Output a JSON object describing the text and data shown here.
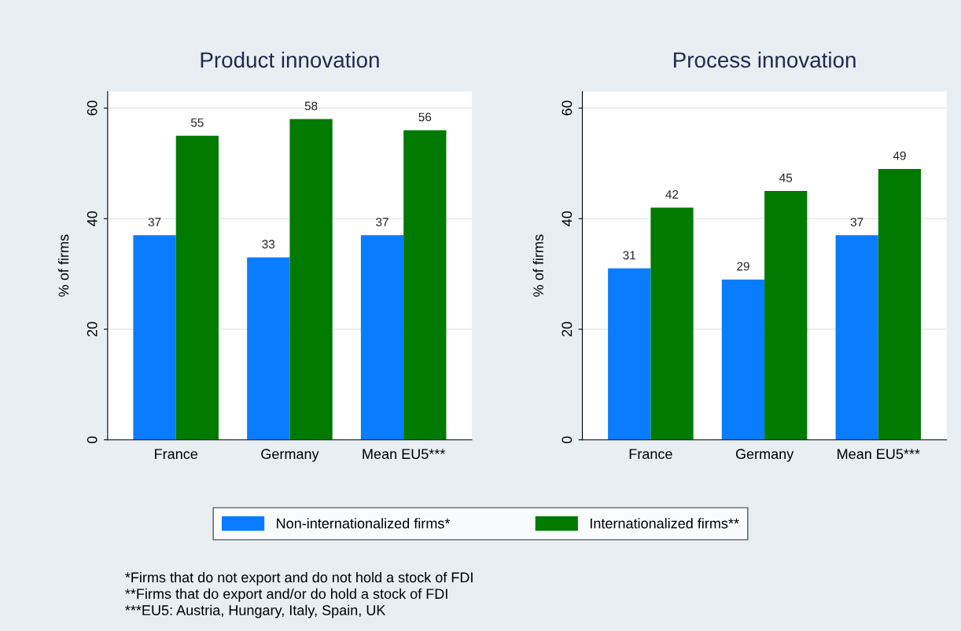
{
  "chart_data": [
    {
      "type": "bar",
      "title": "Product innovation",
      "ylabel": "% of firms",
      "categories": [
        "France",
        "Germany",
        "Mean EU5***"
      ],
      "series": [
        {
          "name": "Non-internationalized firms*",
          "color": "#0a7cff",
          "values": [
            37,
            33,
            37
          ]
        },
        {
          "name": "Internationalized firms**",
          "color": "#007a00",
          "values": [
            55,
            58,
            56
          ]
        }
      ],
      "ylim": [
        0,
        63
      ],
      "yticks": [
        0,
        20,
        40,
        60
      ],
      "grid": "y",
      "data_labels": true,
      "legend": "bottom",
      "annotations": [
        "*Firms that do not export and do not hold a stock of FDI",
        "**Firms that do export and/or do hold a stock of FDI",
        "***EU5: Austria, Hungary, Italy, Spain, UK"
      ]
    },
    {
      "type": "bar",
      "title": "Process innovation",
      "ylabel": "% of firms",
      "categories": [
        "France",
        "Germany",
        "Mean EU5***"
      ],
      "series": [
        {
          "color": "#0a7cff",
          "values": [
            31,
            29,
            37
          ]
        },
        {
          "color": "#007a00",
          "values": [
            42,
            45,
            49
          ]
        }
      ],
      "ylim": [
        0,
        63
      ],
      "yticks": [
        0,
        20,
        40,
        60
      ],
      "grid": "y",
      "data_labels": true
    }
  ]
}
